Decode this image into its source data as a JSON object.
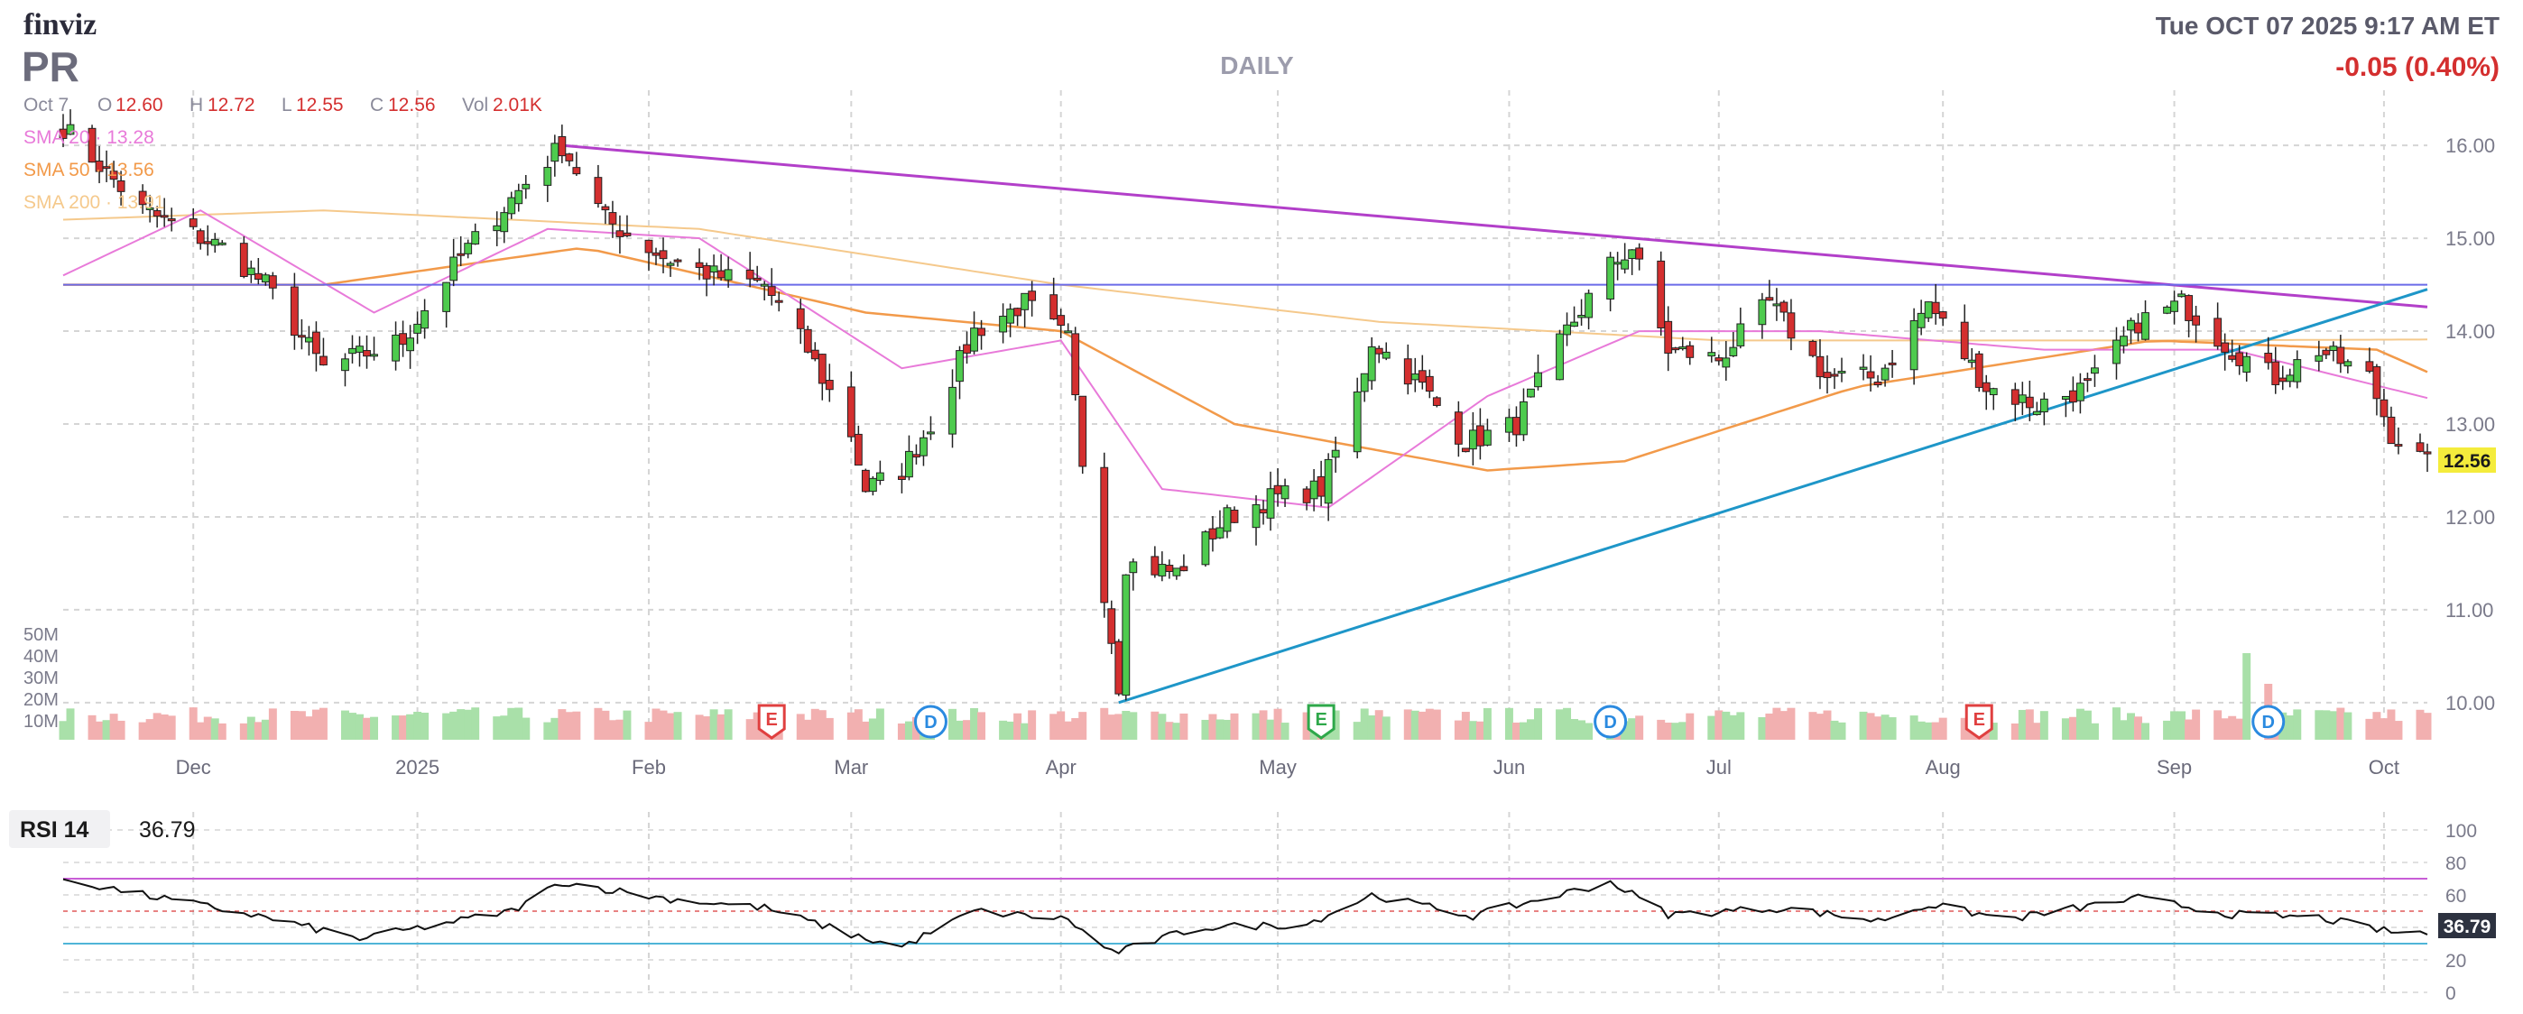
{
  "header": {
    "logo": "finviz",
    "ticker": "PR",
    "timeframe": "DAILY",
    "datetime": "Tue OCT 07 2025 9:17 AM ET",
    "change": "-0.05 (0.40%)"
  },
  "ohlc": {
    "date": "Oct 7",
    "o_label": "O",
    "o": "12.60",
    "h_label": "H",
    "h": "12.72",
    "l_label": "L",
    "l": "12.55",
    "c_label": "C",
    "c": "12.56",
    "vol_label": "Vol",
    "vol": "2.01K"
  },
  "sma": [
    {
      "label": "SMA 20 · 13.28",
      "color": "#e87ad9"
    },
    {
      "label": "SMA 50 · 13.56",
      "color": "#f29a4a"
    },
    {
      "label": "SMA 200 · 13.91",
      "color": "#f5c98c"
    }
  ],
  "colors": {
    "up": "#4ecb4e",
    "down": "#d42f2f",
    "grid": "#d5d5d5",
    "resistance": "#b23fc9",
    "support": "#1e96c8",
    "hline": "#6a6ae8",
    "vol_up": "#a9e0a9",
    "vol_down": "#f2b0b0",
    "text": "#7a7a8a",
    "rsi_upper": "#c85dd6",
    "rsi_lower": "#4fb5d8",
    "rsi_mid": "#e05a5a"
  },
  "chart_data": {
    "type": "candlestick",
    "ylim": [
      9.6,
      16.4
    ],
    "yticks": [
      "16.00",
      "15.00",
      "14.00",
      "13.00",
      "12.00",
      "11.00",
      "10.00"
    ],
    "xticks": [
      "Dec",
      "2025",
      "Feb",
      "Mar",
      "Apr",
      "May",
      "Jun",
      "Jul",
      "Aug",
      "Sep",
      "Oct"
    ],
    "last_price": "12.56",
    "volume_axis": [
      "50M",
      "40M",
      "30M",
      "20M",
      "10M"
    ],
    "event_markers": [
      {
        "type": "E",
        "date": "Feb 20"
      },
      {
        "type": "D",
        "date": "Mar 14"
      },
      {
        "type": "E",
        "date": "May 7"
      },
      {
        "type": "D",
        "date": "Jun 16"
      },
      {
        "type": "E",
        "date": "Aug 6"
      },
      {
        "type": "D",
        "date": "Sep 15"
      }
    ],
    "price_keypoints": [
      [
        "Nov 14",
        16.2
      ],
      [
        "Nov 25",
        15.3
      ],
      [
        "Dec 6",
        14.9
      ],
      [
        "Dec 12",
        14.5
      ],
      [
        "Dec 20",
        13.6
      ],
      [
        "Dec 31",
        13.9
      ],
      [
        "Jan 8",
        14.8
      ],
      [
        "Jan 17",
        15.6
      ],
      [
        "Jan 22",
        16.0
      ],
      [
        "Jan 28",
        15.2
      ],
      [
        "Feb 5",
        14.8
      ],
      [
        "Feb 12",
        14.6
      ],
      [
        "Feb 19",
        14.5
      ],
      [
        "Feb 25",
        13.8
      ],
      [
        "Mar 3",
        12.9
      ],
      [
        "Mar 5",
        12.3
      ],
      [
        "Mar 10",
        12.5
      ],
      [
        "Mar 14",
        13.0
      ],
      [
        "Mar 20",
        14.0
      ],
      [
        "Mar 27",
        14.3
      ],
      [
        "Apr 2",
        13.9
      ],
      [
        "Apr 4",
        12.6
      ],
      [
        "Apr 7",
        11.2
      ],
      [
        "Apr 9",
        10.2
      ],
      [
        "Apr 10",
        11.5
      ],
      [
        "Apr 17",
        11.4
      ],
      [
        "Apr 24",
        12.0
      ],
      [
        "Apr 30",
        12.2
      ],
      [
        "May 7",
        12.3
      ],
      [
        "May 12",
        13.3
      ],
      [
        "May 14",
        13.9
      ],
      [
        "May 21",
        13.4
      ],
      [
        "May 27",
        12.8
      ],
      [
        "Jun 3",
        13.0
      ],
      [
        "Jun 10",
        14.0
      ],
      [
        "Jun 16",
        14.7
      ],
      [
        "Jun 19",
        14.9
      ],
      [
        "Jun 24",
        13.8
      ],
      [
        "Jul 1",
        13.7
      ],
      [
        "Jul 8",
        14.3
      ],
      [
        "Jul 16",
        13.5
      ],
      [
        "Jul 23",
        13.5
      ],
      [
        "Jul 30",
        14.3
      ],
      [
        "Aug 7",
        13.4
      ],
      [
        "Aug 14",
        13.2
      ],
      [
        "Aug 21",
        13.4
      ],
      [
        "Aug 28",
        14.1
      ],
      [
        "Sep 3",
        14.3
      ],
      [
        "Sep 10",
        13.8
      ],
      [
        "Sep 16",
        13.5
      ],
      [
        "Sep 22",
        13.8
      ],
      [
        "Sep 29",
        13.5
      ],
      [
        "Oct 2",
        12.9
      ],
      [
        "Oct 7",
        12.56
      ]
    ],
    "sma20_keypoints": [
      [
        "Nov 14",
        14.6
      ],
      [
        "Dec 3",
        15.3
      ],
      [
        "Dec 27",
        14.2
      ],
      [
        "Jan 20",
        15.1
      ],
      [
        "Feb 10",
        15.0
      ],
      [
        "Mar 10",
        13.6
      ],
      [
        "Apr 1",
        13.9
      ],
      [
        "Apr 15",
        12.3
      ],
      [
        "May 8",
        12.1
      ],
      [
        "May 30",
        13.3
      ],
      [
        "Jun 20",
        14.0
      ],
      [
        "Jul 15",
        14.0
      ],
      [
        "Aug 15",
        13.8
      ],
      [
        "Sep 10",
        13.8
      ],
      [
        "Oct 7",
        13.28
      ]
    ],
    "sma50_keypoints": [
      [
        "Nov 14",
        14.5
      ],
      [
        "Dec 20",
        14.5
      ],
      [
        "Jan 25",
        14.9
      ],
      [
        "Mar 5",
        14.2
      ],
      [
        "Apr 1",
        14.0
      ],
      [
        "Apr 25",
        13.0
      ],
      [
        "May 30",
        12.5
      ],
      [
        "Jun 18",
        12.6
      ],
      [
        "Jul 20",
        13.4
      ],
      [
        "Aug 30",
        13.9
      ],
      [
        "Sep 30",
        13.8
      ],
      [
        "Oct 7",
        13.56
      ]
    ],
    "sma200_keypoints": [
      [
        "Nov 14",
        15.2
      ],
      [
        "Dec 20",
        15.3
      ],
      [
        "Feb 10",
        15.1
      ],
      [
        "Apr 1",
        14.5
      ],
      [
        "May 15",
        14.1
      ],
      [
        "Jul 1",
        13.9
      ],
      [
        "Sep 1",
        13.9
      ],
      [
        "Oct 7",
        13.91
      ]
    ],
    "trendlines": [
      {
        "name": "resistance",
        "from": [
          "Jan 22",
          16.0
        ],
        "to": [
          "Oct 7",
          14.26
        ]
      },
      {
        "name": "support",
        "from": [
          "Apr 9",
          10.0
        ],
        "to": [
          "Oct 7",
          14.45
        ]
      },
      {
        "name": "horizontal",
        "from": [
          "Nov 14",
          14.5
        ],
        "to": [
          "Oct 7",
          14.5
        ]
      }
    ]
  },
  "rsi": {
    "label": "RSI 14",
    "value": "36.79",
    "ylim": [
      0,
      100
    ],
    "yticks": [
      "100",
      "80",
      "60",
      "40",
      "20",
      "0"
    ],
    "upper": 70,
    "lower": 30,
    "keypoints": [
      [
        "Nov 14",
        70
      ],
      [
        "Nov 25",
        60
      ],
      [
        "Dec 10",
        48
      ],
      [
        "Dec 25",
        33
      ],
      [
        "Jan 15",
        50
      ],
      [
        "Jan 22",
        68
      ],
      [
        "Feb 5",
        58
      ],
      [
        "Feb 19",
        52
      ],
      [
        "Mar 5",
        33
      ],
      [
        "Mar 10",
        28
      ],
      [
        "Mar 20",
        50
      ],
      [
        "Apr 2",
        45
      ],
      [
        "Apr 7",
        27
      ],
      [
        "Apr 9",
        25
      ],
      [
        "Apr 20",
        40
      ],
      [
        "May 5",
        42
      ],
      [
        "May 14",
        60
      ],
      [
        "May 28",
        47
      ],
      [
        "Jun 16",
        68
      ],
      [
        "Jun 24",
        48
      ],
      [
        "Jul 10",
        52
      ],
      [
        "Jul 23",
        44
      ],
      [
        "Jul 30",
        54
      ],
      [
        "Aug 10",
        45
      ],
      [
        "Aug 28",
        58
      ],
      [
        "Sep 10",
        48
      ],
      [
        "Sep 22",
        46
      ],
      [
        "Oct 2",
        37
      ],
      [
        "Oct 7",
        36.79
      ]
    ]
  }
}
